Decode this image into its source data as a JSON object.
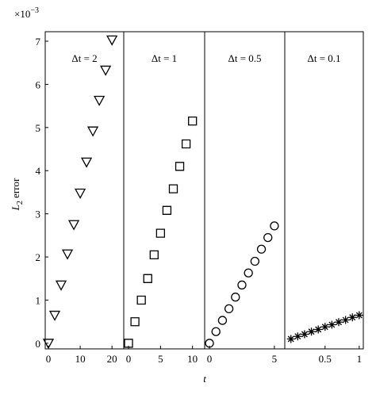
{
  "chart_data": [
    {
      "type": "scatter",
      "title": "Δt = 2",
      "marker": "triangle-down",
      "color": "#000000",
      "x": [
        0,
        2,
        4,
        6,
        8,
        10,
        12,
        14,
        16,
        18,
        20
      ],
      "values": [
        0,
        0.65,
        1.35,
        2.07,
        2.75,
        3.48,
        4.2,
        4.92,
        5.63,
        6.33,
        7.03
      ],
      "xlim": [
        -1,
        23.7
      ],
      "xticks": [
        0,
        10,
        20
      ],
      "ylim": [
        -0.13,
        7.22
      ],
      "yticks": [
        0,
        1,
        2,
        3,
        4,
        5,
        6,
        7
      ]
    },
    {
      "type": "scatter",
      "title": "Δt = 1",
      "marker": "square",
      "color": "#000000",
      "x": [
        0,
        1,
        2,
        3,
        4,
        5,
        6,
        7,
        8,
        9,
        10
      ],
      "values": [
        0,
        0.5,
        1.0,
        1.5,
        2.05,
        2.55,
        3.08,
        3.58,
        4.1,
        4.62,
        5.15
      ],
      "xlim": [
        -0.75,
        11.9
      ],
      "xticks": [
        0,
        5,
        10
      ],
      "ylim": [
        -0.13,
        7.22
      ]
    },
    {
      "type": "scatter",
      "title": "Δt = 0.5",
      "marker": "circle",
      "color": "#000000",
      "x": [
        0,
        0.5,
        1,
        1.5,
        2,
        2.5,
        3,
        3.5,
        4,
        4.5,
        5
      ],
      "values": [
        0,
        0.27,
        0.53,
        0.8,
        1.07,
        1.35,
        1.63,
        1.9,
        2.18,
        2.45,
        2.72
      ],
      "xlim": [
        -0.37,
        5.8
      ],
      "xticks": [
        0,
        5
      ],
      "ylim": [
        -0.13,
        7.22
      ]
    },
    {
      "type": "scatter",
      "title": "Δt = 0.1",
      "marker": "star",
      "color": "#000000",
      "x": [
        0,
        0.1,
        0.2,
        0.3,
        0.4,
        0.5,
        0.6,
        0.7,
        0.8,
        0.9,
        1
      ],
      "values": [
        0.1,
        0.16,
        0.21,
        0.27,
        0.32,
        0.38,
        0.43,
        0.49,
        0.54,
        0.6,
        0.65
      ],
      "xlim": [
        -0.09,
        1.06
      ],
      "xticks": [
        0.5,
        1
      ],
      "ylim": [
        -0.13,
        7.22
      ]
    }
  ],
  "y_multiplier": {
    "base": "×10",
    "exponent": "−3"
  },
  "y_label": {
    "main": "L",
    "sub": "2",
    "rest": " error"
  },
  "x_label": "t"
}
